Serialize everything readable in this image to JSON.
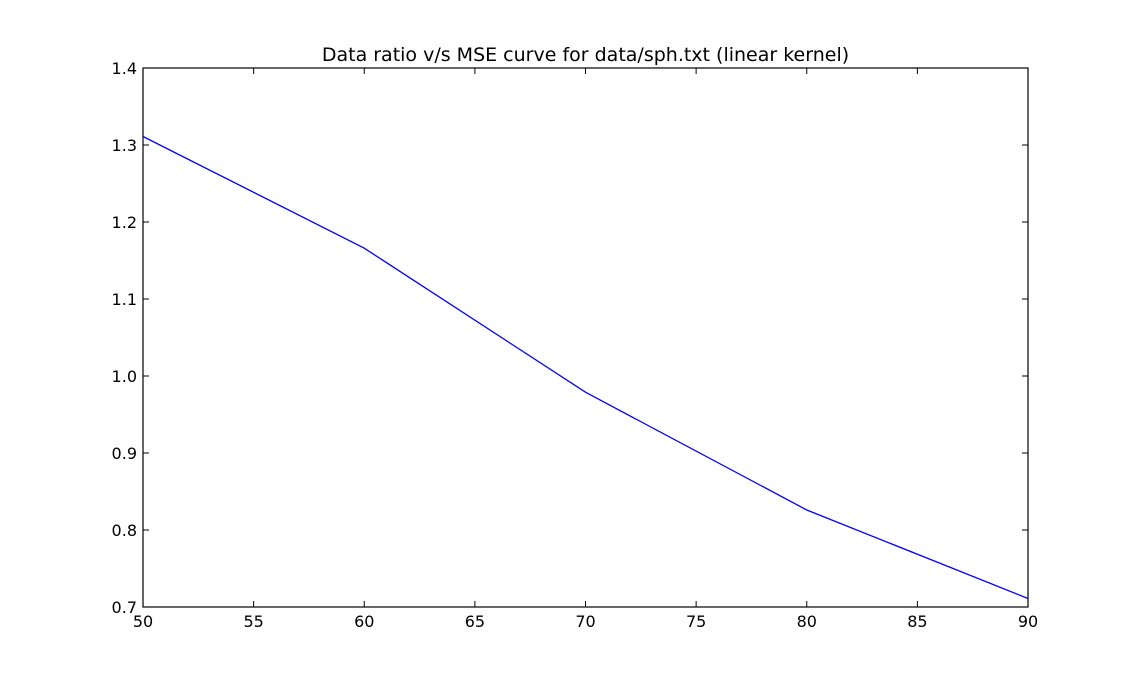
{
  "chart_data": {
    "type": "line",
    "title": "Data ratio v/s MSE curve for data/sph.txt (linear kernel)",
    "xlabel": "",
    "ylabel": "",
    "xlim": [
      50,
      90
    ],
    "ylim": [
      0.7,
      1.4
    ],
    "x_ticks": [
      "50",
      "55",
      "60",
      "65",
      "70",
      "75",
      "80",
      "85",
      "90"
    ],
    "y_ticks": [
      "0.7",
      "0.8",
      "0.9",
      "1.0",
      "1.1",
      "1.2",
      "1.3",
      "1.4"
    ],
    "grid": false,
    "series": [
      {
        "color": "#0000ff",
        "x": [
          50,
          60,
          70,
          80,
          90
        ],
        "y": [
          1.311,
          1.166,
          0.979,
          0.826,
          0.711
        ]
      }
    ]
  }
}
